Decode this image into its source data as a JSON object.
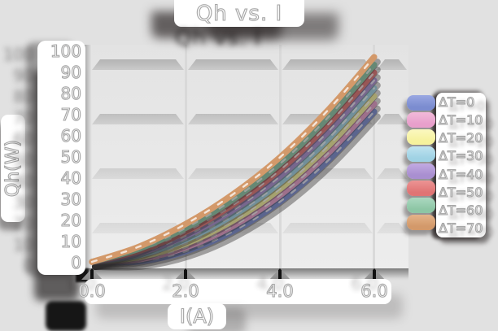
{
  "title": "Qh vs. I",
  "axes": {
    "x_label": "I(A)",
    "y_label": "Qh(W)",
    "x_ticks": [
      "0.0",
      "2.0",
      "4.0",
      "6.0"
    ],
    "y_ticks": [
      "100",
      "90",
      "80",
      "70",
      "60",
      "50",
      "40",
      "30",
      "20",
      "10",
      "0"
    ]
  },
  "chart_data": {
    "type": "line",
    "title": "Qh vs. I",
    "xlabel": "I(A)",
    "ylabel": "Qh(W)",
    "xlim": [
      0,
      6.5
    ],
    "ylim": [
      0,
      100
    ],
    "grid": "horizontal-bands",
    "legend_position": "right",
    "x": [
      0,
      1,
      2,
      3,
      4,
      5,
      6
    ],
    "series": [
      {
        "name": "ΔT=0",
        "color": "#7b8cd0",
        "color_light": "#9aa8e2",
        "values": [
          0,
          0.2,
          5.0,
          14.5,
          28.5,
          47.5,
          71.0
        ]
      },
      {
        "name": "ΔT=10",
        "color": "#e89fcb",
        "color_light": "#f2bada",
        "values": [
          0,
          1.2,
          6.9,
          17.0,
          31.5,
          50.9,
          74.7
        ]
      },
      {
        "name": "ΔT=20",
        "color": "#f6f29d",
        "color_light": "#fbf8c0",
        "values": [
          0,
          2.2,
          8.7,
          19.5,
          34.5,
          54.3,
          78.4
        ]
      },
      {
        "name": "ΔT=30",
        "color": "#9fd2e4",
        "color_light": "#c0e3f0",
        "values": [
          0,
          3.2,
          10.6,
          22.0,
          37.5,
          57.7,
          82.1
        ]
      },
      {
        "name": "ΔT=40",
        "color": "#a98fd0",
        "color_light": "#c2aae2",
        "values": [
          0,
          4.2,
          12.4,
          24.5,
          40.5,
          61.1,
          85.8
        ]
      },
      {
        "name": "ΔT=50",
        "color": "#e07474",
        "color_light": "#ec9494",
        "values": [
          0,
          5.2,
          14.3,
          27.0,
          43.5,
          64.5,
          89.5
        ]
      },
      {
        "name": "ΔT=60",
        "color": "#8dc6a5",
        "color_light": "#abd8c0",
        "values": [
          0,
          6.2,
          16.1,
          29.5,
          46.5,
          67.9,
          93.2
        ]
      },
      {
        "name": "ΔT=70",
        "color": "#d3996a",
        "color_light": "#e4b389",
        "values": [
          0,
          7.2,
          18.0,
          32.0,
          49.5,
          71.3,
          96.9
        ]
      }
    ]
  }
}
